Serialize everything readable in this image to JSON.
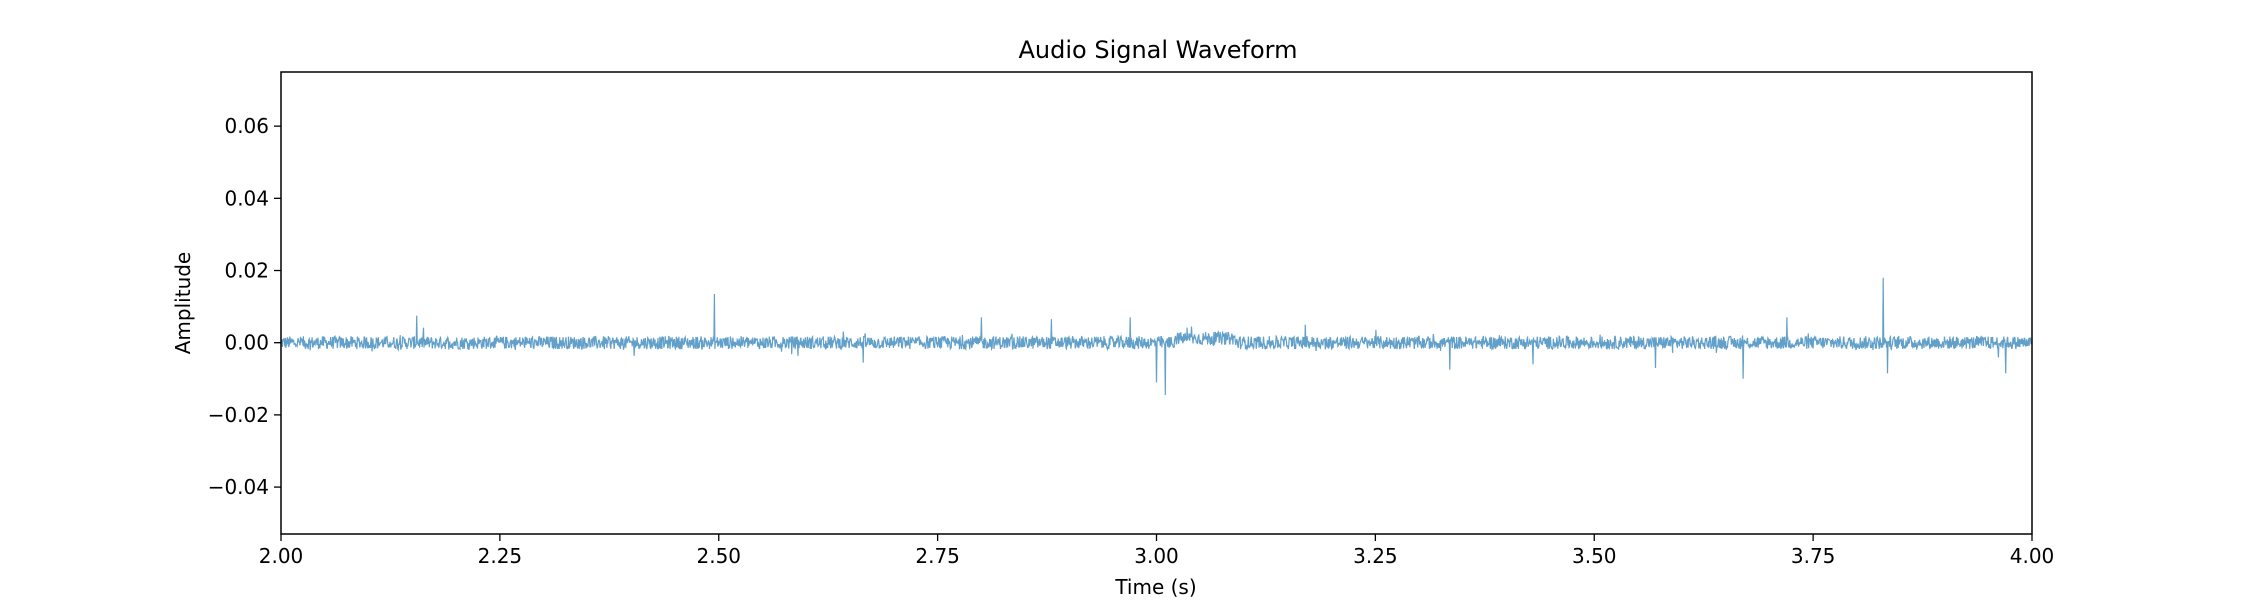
{
  "chart_data": {
    "type": "line",
    "title": "Audio Signal Waveform",
    "xlabel": "Time (s)",
    "ylabel": "Amplitude",
    "xlim": [
      2.0,
      4.0
    ],
    "ylim": [
      -0.053,
      0.075
    ],
    "x_ticks": [
      2.0,
      2.25,
      2.5,
      2.75,
      3.0,
      3.25,
      3.5,
      3.75,
      4.0
    ],
    "x_tick_labels": [
      "2.00",
      "2.25",
      "2.50",
      "2.75",
      "3.00",
      "3.25",
      "3.50",
      "3.75",
      "4.00"
    ],
    "y_ticks": [
      -0.04,
      -0.02,
      0.0,
      0.02,
      0.04,
      0.06
    ],
    "y_tick_labels": [
      "−0.04",
      "−0.02",
      "0.00",
      "0.02",
      "0.04",
      "0.06"
    ],
    "grid": false,
    "series": [
      {
        "color": "#1f77b4",
        "opacity": 0.7,
        "baseline": 0.0,
        "noise_amplitude": 0.0018,
        "x": [
          2.0,
          2.155,
          2.495,
          2.665,
          2.8,
          2.88,
          2.97,
          3.0,
          3.01,
          3.04,
          3.17,
          3.335,
          3.43,
          3.57,
          3.67,
          3.72,
          3.83,
          3.835,
          3.97,
          4.0
        ],
        "y": [
          0.0,
          0.0075,
          0.0135,
          -0.0055,
          0.007,
          0.0065,
          0.007,
          -0.011,
          -0.0145,
          0.0045,
          0.005,
          -0.0075,
          -0.006,
          -0.007,
          -0.01,
          0.007,
          0.018,
          -0.0085,
          -0.0085,
          0.0
        ]
      }
    ]
  }
}
